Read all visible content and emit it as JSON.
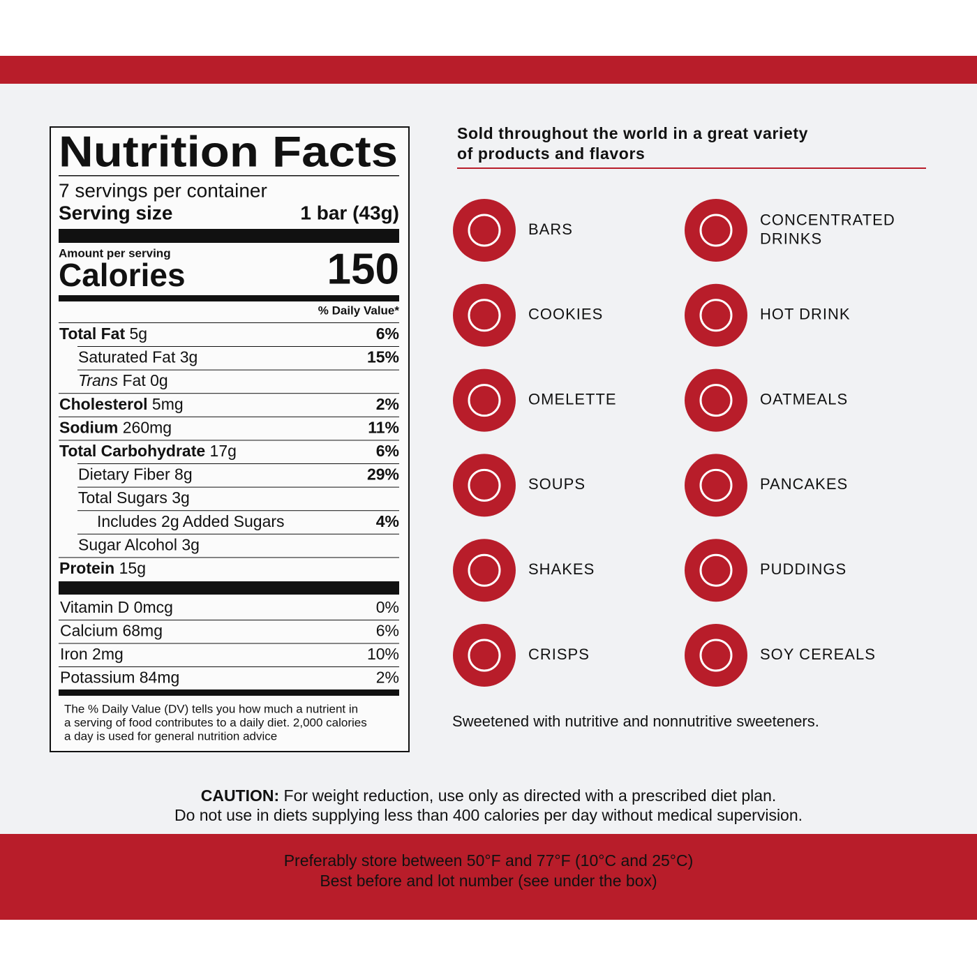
{
  "nutrition": {
    "title": "Nutrition Facts",
    "servings": "7 servings per container",
    "serving_size_label": "Serving size",
    "serving_size": "1 bar (43g)",
    "amount_per_serving": "Amount per serving",
    "calories_label": "Calories",
    "calories": "150",
    "dv_header": "% Daily Value*",
    "rows": [
      {
        "bold": "Total Fat",
        "text": "5g",
        "dv": "6%",
        "indent": 0
      },
      {
        "text": "Saturated Fat 3g",
        "dv": "15%",
        "indent": 1
      },
      {
        "italic": "Trans",
        "text": "Fat 0g",
        "indent": 1
      },
      {
        "bold": "Cholesterol",
        "text": "5mg",
        "dv": "2%",
        "indent": 0
      },
      {
        "bold": "Sodium",
        "text": "260mg",
        "dv": "11%",
        "indent": 0
      },
      {
        "bold": "Total Carbohydrate",
        "text": "17g",
        "dv": "6%",
        "indent": 0
      },
      {
        "text": "Dietary Fiber 8g",
        "dv": "29%",
        "indent": 1
      },
      {
        "text": "Total Sugars 3g",
        "indent": 1
      },
      {
        "text": "Includes 2g Added Sugars",
        "dv": "4%",
        "indent": 2
      },
      {
        "text": "Sugar Alcohol 3g",
        "indent": 1
      },
      {
        "bold": "Protein",
        "text": "15g",
        "indent": 0
      }
    ],
    "vitamins": [
      {
        "text": "Vitamin D 0mcg",
        "dv": "0%"
      },
      {
        "text": "Calcium 68mg",
        "dv": "6%"
      },
      {
        "text": "Iron 2mg",
        "dv": "10%"
      },
      {
        "text": "Potassium 84mg",
        "dv": "2%"
      }
    ],
    "footnote": [
      "The % Daily Value (DV) tells you how much a nutrient in",
      "a serving of food contributes to a daily diet. 2,000 calories",
      "a day is used for general nutrition advice"
    ]
  },
  "products": {
    "heading": [
      "Sold throughout the world in a great variety",
      "of products and flavors"
    ],
    "items": [
      {
        "label": [
          "BARS"
        ]
      },
      {
        "label": [
          "CONCENTRATED",
          "DRINKS"
        ]
      },
      {
        "label": [
          "COOKIES"
        ]
      },
      {
        "label": [
          "HOT DRINK"
        ]
      },
      {
        "label": [
          "OMELETTE"
        ]
      },
      {
        "label": [
          "OATMEALS"
        ]
      },
      {
        "label": [
          "SOUPS"
        ]
      },
      {
        "label": [
          "PANCAKES"
        ]
      },
      {
        "label": [
          "SHAKES"
        ]
      },
      {
        "label": [
          "PUDDINGS"
        ]
      },
      {
        "label": [
          "CRISPS"
        ]
      },
      {
        "label": [
          "SOY CEREALS"
        ]
      }
    ],
    "sweetener_note": "Sweetened with nutritive and nonnutritive sweeteners."
  },
  "caution": {
    "bold": "CAUTION:",
    "line1": "For weight reduction, use only as directed with a prescribed diet plan.",
    "line2": "Do not use in diets supplying less than 400 calories per day without medical supervision."
  },
  "footer": [
    "Preferably store between 50°F and 77°F (10°C and 25°C)",
    "Best before and lot number (see under the box)"
  ]
}
